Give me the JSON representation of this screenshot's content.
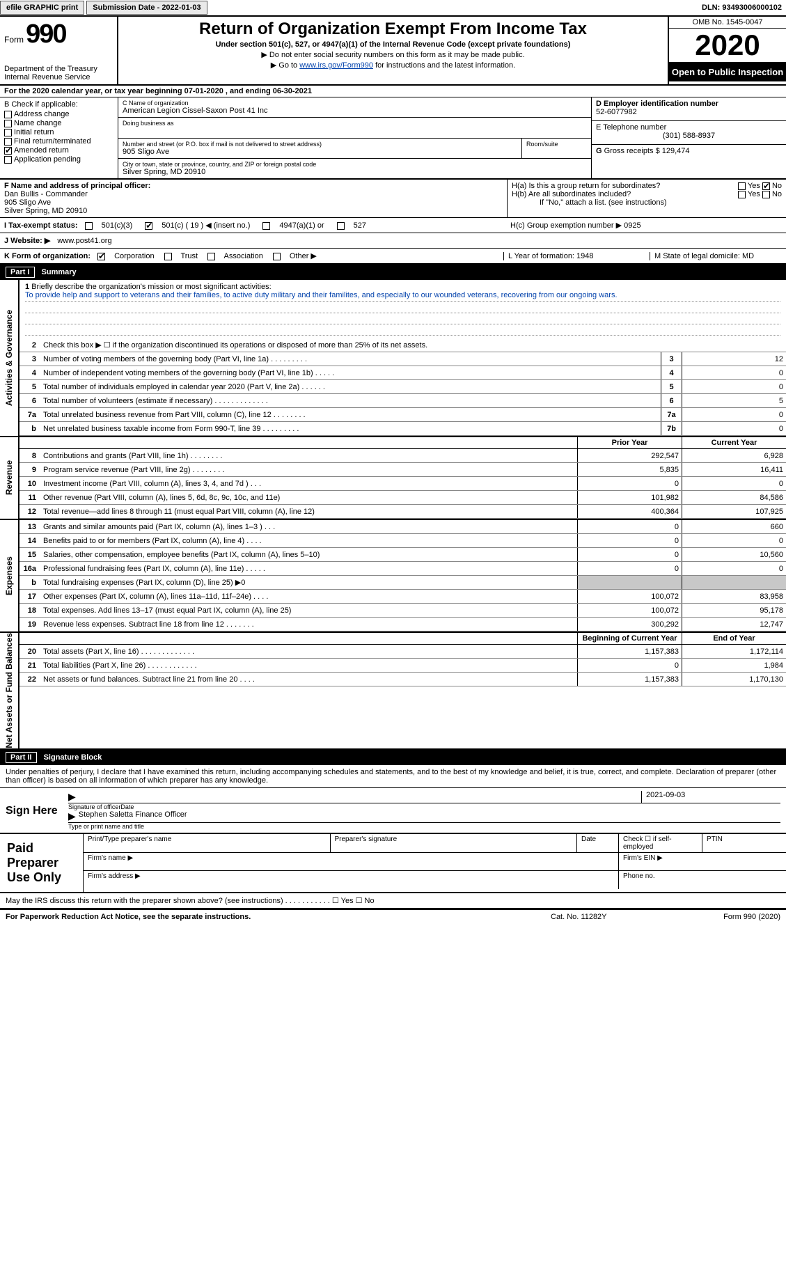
{
  "topbar": {
    "efile": "efile GRAPHIC print",
    "submission": "Submission Date - 2022-01-03",
    "dln": "DLN: 93493006000102"
  },
  "header": {
    "form_label": "Form",
    "form_number": "990",
    "dept": "Department of the Treasury\nInternal Revenue Service",
    "title": "Return of Organization Exempt From Income Tax",
    "subtitle": "Under section 501(c), 527, or 4947(a)(1) of the Internal Revenue Code (except private foundations)",
    "note1": "▶ Do not enter social security numbers on this form as it may be made public.",
    "note2_pre": "▶ Go to ",
    "note2_link": "www.irs.gov/Form990",
    "note2_post": " for instructions and the latest information.",
    "omb": "OMB No. 1545-0047",
    "year": "2020",
    "inspect": "Open to Public Inspection"
  },
  "line_a": "For the 2020 calendar year, or tax year beginning 07-01-2020    , and ending 06-30-2021",
  "section_b": {
    "title": "B Check if applicable:",
    "opts": [
      "Address change",
      "Name change",
      "Initial return",
      "Final return/terminated",
      "Amended return",
      "Application pending"
    ],
    "checked_idx": 4
  },
  "section_c": {
    "label": "C Name of organization",
    "name": "American Legion Cissel-Saxon Post 41 Inc",
    "dba": "Doing business as",
    "addr_label": "Number and street (or P.O. box if mail is not delivered to street address)",
    "room": "Room/suite",
    "addr": "905 Sligo Ave",
    "city_label": "City or town, state or province, country, and ZIP or foreign postal code",
    "city": "Silver Spring, MD  20910"
  },
  "section_d": {
    "label": "D Employer identification number",
    "value": "52-6077982"
  },
  "section_e": {
    "label": "E Telephone number",
    "value": "(301) 588-8937"
  },
  "section_g": {
    "label": "G",
    "text": "Gross receipts $ 129,474"
  },
  "section_f": {
    "label": "F  Name and address of principal officer:",
    "lines": [
      "Dan Bullis - Commander",
      "905 Sligo Ave",
      "Silver Spring, MD  20910"
    ]
  },
  "section_h": {
    "a": "H(a)  Is this a group return for subordinates?",
    "b": "H(b)  Are all subordinates included?",
    "b_note": "If \"No,\" attach a list. (see instructions)",
    "c": "H(c)  Group exemption number ▶   0925"
  },
  "section_i": {
    "label": "I     Tax-exempt status:",
    "opts": [
      "501(c)(3)",
      "501(c) ( 19 ) ◀ (insert no.)",
      "4947(a)(1) or",
      "527"
    ],
    "checked_idx": 1
  },
  "section_j": {
    "label": "J    Website: ▶",
    "value": "www.post41.org"
  },
  "section_k": {
    "label": "K Form of organization:",
    "opts": [
      "Corporation",
      "Trust",
      "Association",
      "Other ▶"
    ],
    "checked_idx": 0
  },
  "section_l": "L Year of formation: 1948",
  "section_m": "M State of legal domicile: MD",
  "part1": {
    "num": "Part I",
    "title": "Summary"
  },
  "mission": {
    "num": "1",
    "label": "Briefly describe the organization's mission or most significant activities:",
    "text": "To provide help and support to veterans and their families, to active duty military and their familites, and especially to our wounded veterans, recovering from our ongoing wars."
  },
  "gov_lines": [
    {
      "n": "2",
      "d": "Check this box ▶ ☐  if the organization discontinued its operations or disposed of more than 25% of its net assets."
    },
    {
      "n": "3",
      "d": "Number of voting members of the governing body (Part VI, line 1a)   .    .    .    .    .    .    .    .    .",
      "b": "3",
      "v": "12"
    },
    {
      "n": "4",
      "d": "Number of independent voting members of the governing body (Part VI, line 1b)    .    .    .    .    .",
      "b": "4",
      "v": "0"
    },
    {
      "n": "5",
      "d": "Total number of individuals employed in calendar year 2020 (Part V, line 2a)    .    .    .    .    .    .",
      "b": "5",
      "v": "0"
    },
    {
      "n": "6",
      "d": "Total number of volunteers (estimate if necessary)    .    .    .    .    .    .    .    .    .    .    .    .    .",
      "b": "6",
      "v": "5"
    },
    {
      "n": "7a",
      "d": "Total unrelated business revenue from Part VIII, column (C), line 12    .    .    .    .    .    .    .    .",
      "b": "7a",
      "v": "0"
    },
    {
      "n": "b",
      "d": "Net unrelated business taxable income from Form 990-T, line 39    .    .    .    .    .    .    .    .    .",
      "b": "7b",
      "v": "0"
    }
  ],
  "col_headers": {
    "prior": "Prior Year",
    "current": "Current Year"
  },
  "rev_lines": [
    {
      "n": "8",
      "d": "Contributions and grants (Part VIII, line 1h)    .    .    .    .    .    .    .    .",
      "p": "292,547",
      "c": "6,928"
    },
    {
      "n": "9",
      "d": "Program service revenue (Part VIII, line 2g)    .    .    .    .    .    .    .    .",
      "p": "5,835",
      "c": "16,411"
    },
    {
      "n": "10",
      "d": "Investment income (Part VIII, column (A), lines 3, 4, and 7d )    .    .    .",
      "p": "0",
      "c": "0"
    },
    {
      "n": "11",
      "d": "Other revenue (Part VIII, column (A), lines 5, 6d, 8c, 9c, 10c, and 11e)",
      "p": "101,982",
      "c": "84,586"
    },
    {
      "n": "12",
      "d": "Total revenue—add lines 8 through 11 (must equal Part VIII, column (A), line 12)",
      "p": "400,364",
      "c": "107,925"
    }
  ],
  "exp_lines": [
    {
      "n": "13",
      "d": "Grants and similar amounts paid (Part IX, column (A), lines 1–3 )    .    .    .",
      "p": "0",
      "c": "660"
    },
    {
      "n": "14",
      "d": "Benefits paid to or for members (Part IX, column (A), line 4)    .    .    .    .",
      "p": "0",
      "c": "0"
    },
    {
      "n": "15",
      "d": "Salaries, other compensation, employee benefits (Part IX, column (A), lines 5–10)",
      "p": "0",
      "c": "10,560"
    },
    {
      "n": "16a",
      "d": "Professional fundraising fees (Part IX, column (A), line 11e)    .    .    .    .    .",
      "p": "0",
      "c": "0"
    },
    {
      "n": "b",
      "d": "Total fundraising expenses (Part IX, column (D), line 25) ▶0",
      "shade": true
    },
    {
      "n": "17",
      "d": "Other expenses (Part IX, column (A), lines 11a–11d, 11f–24e)    .    .    .    .",
      "p": "100,072",
      "c": "83,958"
    },
    {
      "n": "18",
      "d": "Total expenses. Add lines 13–17 (must equal Part IX, column (A), line 25)",
      "p": "100,072",
      "c": "95,178"
    },
    {
      "n": "19",
      "d": "Revenue less expenses. Subtract line 18 from line 12    .    .    .    .    .    .    .",
      "p": "300,292",
      "c": "12,747"
    }
  ],
  "na_headers": {
    "begin": "Beginning of Current Year",
    "end": "End of Year"
  },
  "na_lines": [
    {
      "n": "20",
      "d": "Total assets (Part X, line 16)    .    .    .    .    .    .    .    .    .    .    .    .    .",
      "p": "1,157,383",
      "c": "1,172,114"
    },
    {
      "n": "21",
      "d": "Total liabilities (Part X, line 26)    .    .    .    .    .    .    .    .    .    .    .    .",
      "p": "0",
      "c": "1,984"
    },
    {
      "n": "22",
      "d": "Net assets or fund balances. Subtract line 21 from line 20    .    .    .    .",
      "p": "1,157,383",
      "c": "1,170,130"
    }
  ],
  "part2": {
    "num": "Part II",
    "title": "Signature Block"
  },
  "penalties": "Under penalties of perjury, I declare that I have examined this return, including accompanying schedules and statements, and to the best of my knowledge and belief, it is true, correct, and complete. Declaration of preparer (other than officer) is based on all information of which preparer has any knowledge.",
  "sign": {
    "label": "Sign Here",
    "date": "2021-09-03",
    "l1": "Signature of officer",
    "l1d": "Date",
    "name": "Stephen Saletta Finance Officer",
    "l2": "Type or print name and title"
  },
  "prep": {
    "label": "Paid Preparer Use Only",
    "h1": "Print/Type preparer's name",
    "h2": "Preparer's signature",
    "h3": "Date",
    "h4": "Check ☐ if self-employed",
    "h5": "PTIN",
    "r2a": "Firm's name    ▶",
    "r2b": "Firm's EIN ▶",
    "r3a": "Firm's address ▶",
    "r3b": "Phone no."
  },
  "discuss": "May the IRS discuss this return with the preparer shown above? (see instructions)    .    .    .    .    .    .    .    .    .    .    .    ☐ Yes  ☐ No",
  "footer": {
    "l": "For Paperwork Reduction Act Notice, see the separate instructions.",
    "m": "Cat. No. 11282Y",
    "r": "Form 990 (2020)"
  },
  "side_labels": {
    "gov": "Activities & Governance",
    "rev": "Revenue",
    "exp": "Expenses",
    "na": "Net Assets or Fund Balances"
  }
}
